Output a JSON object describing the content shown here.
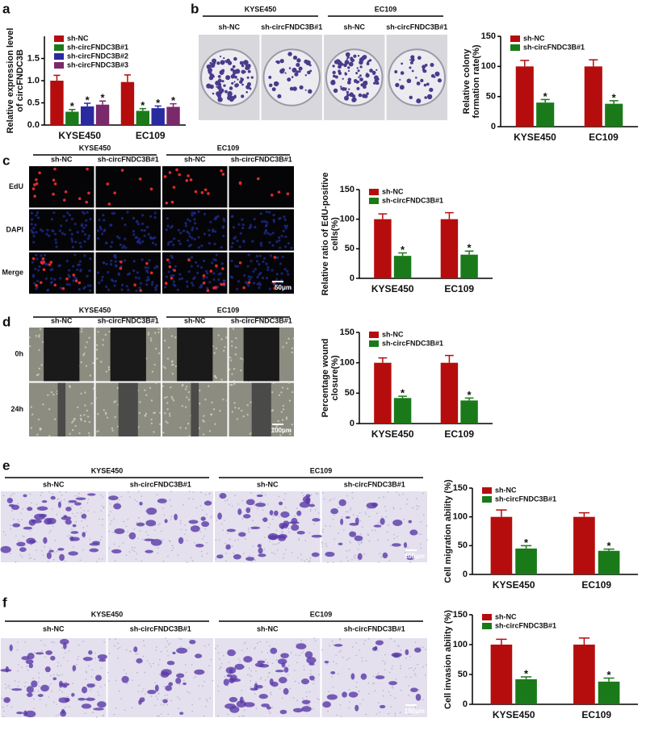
{
  "figure": {
    "letters": [
      "a",
      "b",
      "c",
      "d",
      "e",
      "f"
    ],
    "panels": [
      {
        "groups": [
          "KYSE450",
          "EC109"
        ],
        "columns": [
          "sh-NC",
          "sh-circFNDC3B#1",
          "sh-NC",
          "sh-circFNDC3B#1"
        ],
        "rows": []
      },
      {
        "groups": [
          "KYSE450",
          "EC109"
        ],
        "columns": [
          "sh-NC",
          "sh-circFNDC3B#1",
          "sh-NC",
          "sh-circFNDC3B#1"
        ],
        "rows": [
          "EdU",
          "DAPI",
          "Merge"
        ],
        "scale_bar": "50μm"
      },
      {
        "groups": [
          "KYSE450",
          "EC109"
        ],
        "columns": [
          "sh-NC",
          "sh-circFNDC3B#1",
          "sh-NC",
          "sh-circFNDC3B#1"
        ],
        "rows": [
          "0h",
          "24h"
        ],
        "scale_bar": "100μm"
      },
      {
        "groups": [
          "KYSE450",
          "EC109"
        ],
        "columns": [
          "sh-NC",
          "sh-circFNDC3B#1",
          "sh-NC",
          "sh-circFNDC3B#1"
        ],
        "rows": [],
        "scale_bar": "100μm"
      },
      {
        "groups": [
          "KYSE450",
          "EC109"
        ],
        "columns": [
          "sh-NC",
          "sh-circFNDC3B#1",
          "sh-NC",
          "sh-circFNDC3B#1"
        ],
        "rows": [],
        "scale_bar": "100μm"
      }
    ]
  },
  "chart_data": [
    {
      "type": "bar",
      "ylabel": [
        "Relative expression level",
        "of circFNDC3B"
      ],
      "categories": [
        "KYSE450",
        "EC109"
      ],
      "legend": "upper left",
      "ylim": [
        0,
        2
      ],
      "yticks": [
        {
          "value": 0,
          "label": "0.0"
        },
        0.5,
        {
          "value": 1,
          "label": "1.0"
        },
        1.5
      ],
      "series": [
        {
          "name": "sh-NC",
          "color": "#b50d0d",
          "values": [
            1.0,
            0.97
          ],
          "errors": [
            0.12,
            0.16
          ]
        },
        {
          "name": "sh-circFNDC3B#1",
          "color": "#1a7a1a",
          "values": [
            0.3,
            0.32
          ],
          "errors": [
            0.05,
            0.05
          ],
          "significance": "*"
        },
        {
          "name": "sh-circFNDC3B#2",
          "color": "#2a2aa0",
          "values": [
            0.42,
            0.38
          ],
          "errors": [
            0.07,
            0.05
          ],
          "significance": "*"
        },
        {
          "name": "sh-circFNDC3B#3",
          "color": "#7a2a6a",
          "values": [
            0.46,
            0.41
          ],
          "errors": [
            0.08,
            0.07
          ],
          "significance": "*"
        }
      ]
    },
    {
      "type": "bar",
      "ylabel": [
        "Relative colony",
        "formation rate(%)"
      ],
      "categories": [
        "KYSE450",
        "EC109"
      ],
      "legend": "upper left",
      "ylim": [
        0,
        150
      ],
      "yticks": [
        0,
        50,
        100,
        150
      ],
      "series": [
        {
          "name": "sh-NC",
          "color": "#b50d0d",
          "values": [
            100,
            100
          ],
          "errors": [
            10,
            11
          ]
        },
        {
          "name": "sh-circFNDC3B#1",
          "color": "#1a7a1a",
          "values": [
            40,
            38
          ],
          "errors": [
            5,
            5
          ],
          "significance": "*"
        }
      ]
    },
    {
      "type": "bar",
      "ylabel": [
        "Relative ratio of EdU-positive",
        "cells(%)"
      ],
      "categories": [
        "KYSE450",
        "EC109"
      ],
      "legend": "upper left",
      "ylim": [
        0,
        150
      ],
      "yticks": [
        0,
        50,
        100,
        150
      ],
      "series": [
        {
          "name": "sh-NC",
          "color": "#b50d0d",
          "values": [
            100,
            100
          ],
          "errors": [
            9,
            11
          ]
        },
        {
          "name": "sh-circFNDC3B#1",
          "color": "#1a7a1a",
          "values": [
            38,
            40
          ],
          "errors": [
            5,
            6
          ],
          "significance": "*"
        }
      ]
    },
    {
      "type": "bar",
      "ylabel": [
        "Percentage wound",
        "closure(%)"
      ],
      "categories": [
        "KYSE450",
        "EC109"
      ],
      "legend": "upper left",
      "ylim": [
        0,
        150
      ],
      "yticks": [
        0,
        50,
        100,
        150
      ],
      "series": [
        {
          "name": "sh-NC",
          "color": "#b50d0d",
          "values": [
            100,
            100
          ],
          "errors": [
            8,
            12
          ]
        },
        {
          "name": "sh-circFNDC3B#1",
          "color": "#1a7a1a",
          "values": [
            42,
            38
          ],
          "errors": [
            3,
            4
          ],
          "significance": "*"
        }
      ]
    },
    {
      "type": "bar",
      "ylabel": [
        "Cell migration ability (%)"
      ],
      "categories": [
        "KYSE450",
        "EC109"
      ],
      "legend": "upper left",
      "ylim": [
        0,
        150
      ],
      "yticks": [
        0,
        50,
        100,
        150
      ],
      "series": [
        {
          "name": "sh-NC",
          "color": "#b50d0d",
          "values": [
            100,
            100
          ],
          "errors": [
            12,
            7
          ]
        },
        {
          "name": "sh-circFNDC3B#1",
          "color": "#1a7a1a",
          "values": [
            45,
            41
          ],
          "errors": [
            5,
            3
          ],
          "significance": "*"
        }
      ]
    },
    {
      "type": "bar",
      "ylabel": [
        "Cell invasion ability (%)"
      ],
      "categories": [
        "KYSE450",
        "EC109"
      ],
      "legend": "upper left",
      "ylim": [
        0,
        150
      ],
      "yticks": [
        0,
        50,
        100,
        150
      ],
      "series": [
        {
          "name": "sh-NC",
          "color": "#b50d0d",
          "values": [
            100,
            100
          ],
          "errors": [
            9,
            11
          ]
        },
        {
          "name": "sh-circFNDC3B#1",
          "color": "#1a7a1a",
          "values": [
            42,
            38
          ],
          "errors": [
            4,
            6
          ],
          "significance": "*"
        }
      ]
    }
  ]
}
